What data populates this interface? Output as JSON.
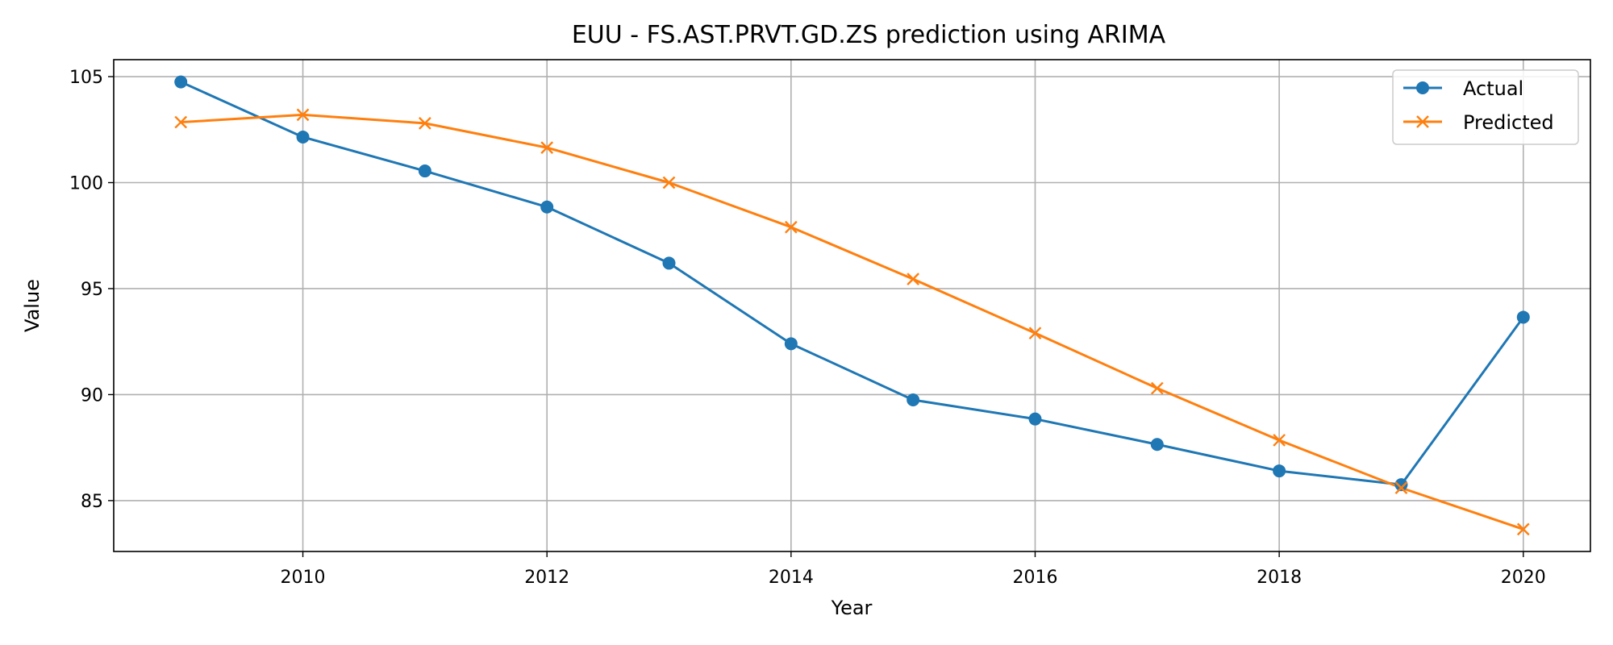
{
  "chart_data": {
    "type": "line",
    "title": "EUU - FS.AST.PRVT.GD.ZS prediction using ARIMA",
    "xlabel": "Year",
    "ylabel": "Value",
    "x": [
      2009,
      2010,
      2011,
      2012,
      2013,
      2014,
      2015,
      2016,
      2017,
      2018,
      2019,
      2020
    ],
    "xlim": [
      2008.45,
      2020.55
    ],
    "ylim": [
      82.6,
      105.8
    ],
    "xticks": [
      2010,
      2012,
      2014,
      2016,
      2018,
      2020
    ],
    "yticks": [
      85,
      90,
      95,
      100,
      105
    ],
    "grid": true,
    "legend_position": "top-right",
    "series": [
      {
        "name": "Actual",
        "color": "#1f77b4",
        "marker": "circle",
        "values": [
          104.75,
          102.15,
          100.55,
          98.85,
          96.2,
          92.4,
          89.75,
          88.85,
          87.65,
          86.4,
          85.75,
          93.65
        ]
      },
      {
        "name": "Predicted",
        "color": "#ff7f0e",
        "marker": "x",
        "values": [
          102.85,
          103.2,
          102.8,
          101.65,
          100.0,
          97.9,
          95.45,
          92.9,
          90.3,
          87.85,
          85.6,
          83.65
        ]
      }
    ]
  }
}
